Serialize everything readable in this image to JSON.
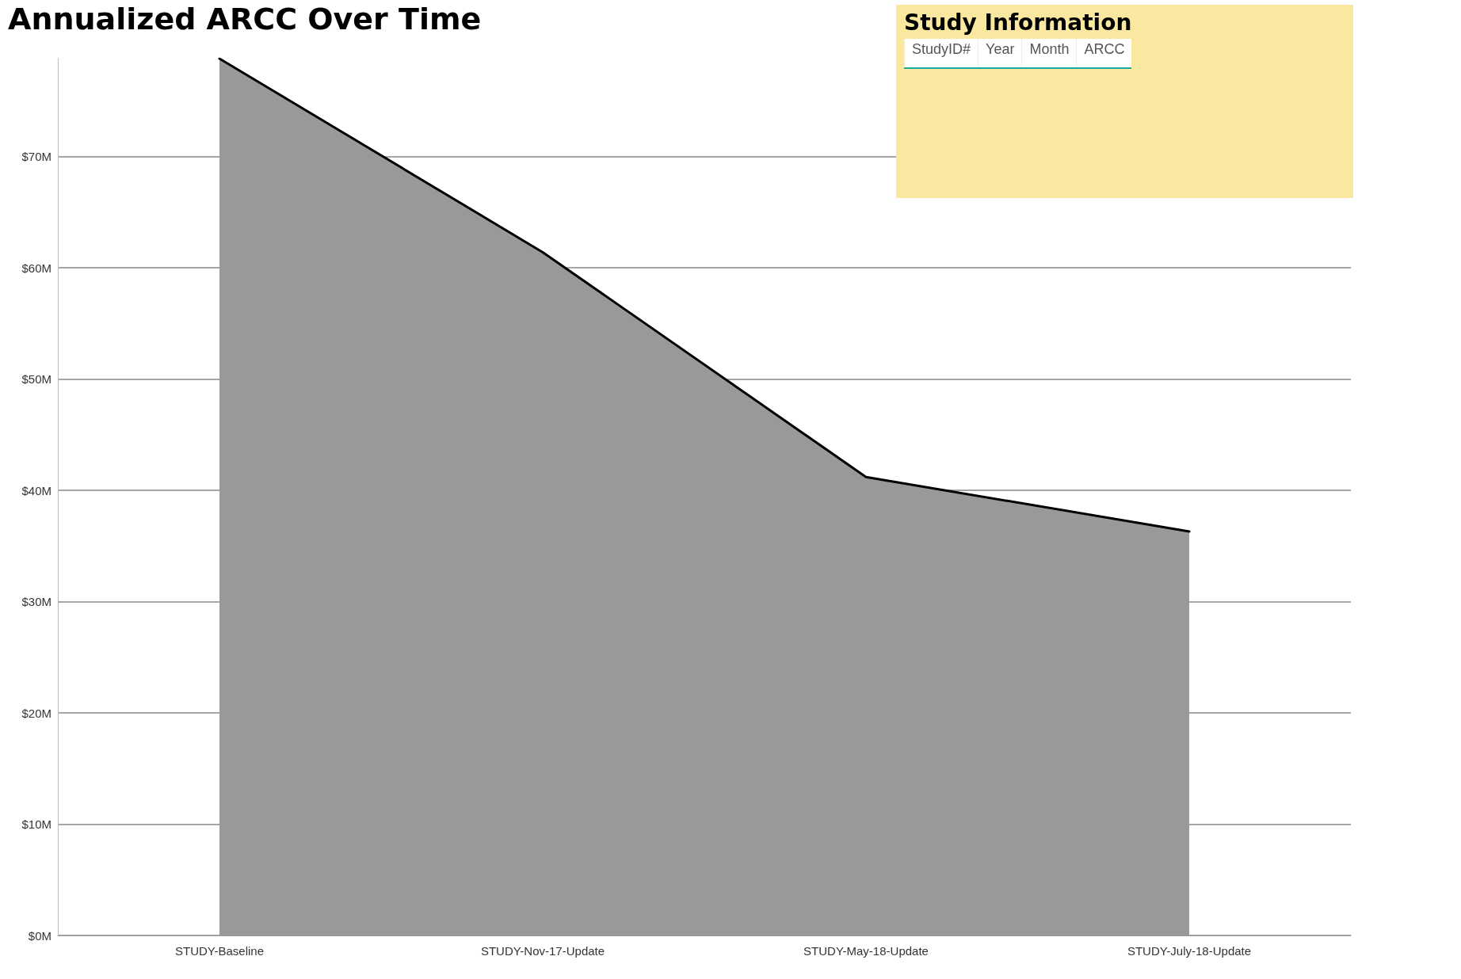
{
  "chart_data": [
    {
      "type": "area",
      "title": "Annualized ARCC Over Time",
      "categories": [
        "STUDY-Baseline",
        "STUDY-Nov-17-Update",
        "STUDY-May-18-Update",
        "STUDY-July-18-Update"
      ],
      "series": [
        {
          "color": "#999999",
          "values": [
            78.8,
            61.4,
            41.2,
            36.3
          ]
        }
      ],
      "ylim": [
        0,
        78.8
      ],
      "yticks": [
        {
          "value": 0,
          "label": "$0M"
        },
        {
          "value": 10,
          "label": "$10M"
        },
        {
          "value": 20,
          "label": "$20M"
        },
        {
          "value": 30,
          "label": "$30M"
        },
        {
          "value": 40,
          "label": "$40M"
        },
        {
          "value": 50,
          "label": "$50M"
        },
        {
          "value": 60,
          "label": "$60M"
        },
        {
          "value": 70,
          "label": "$70M"
        }
      ],
      "grid": "y",
      "marker": "none",
      "line_style": "solid"
    },
    {
      "type": "other",
      "title": "Study Information",
      "annotations": [
        "StudyID#",
        "Year",
        "Month",
        "ARCC"
      ]
    }
  ]
}
